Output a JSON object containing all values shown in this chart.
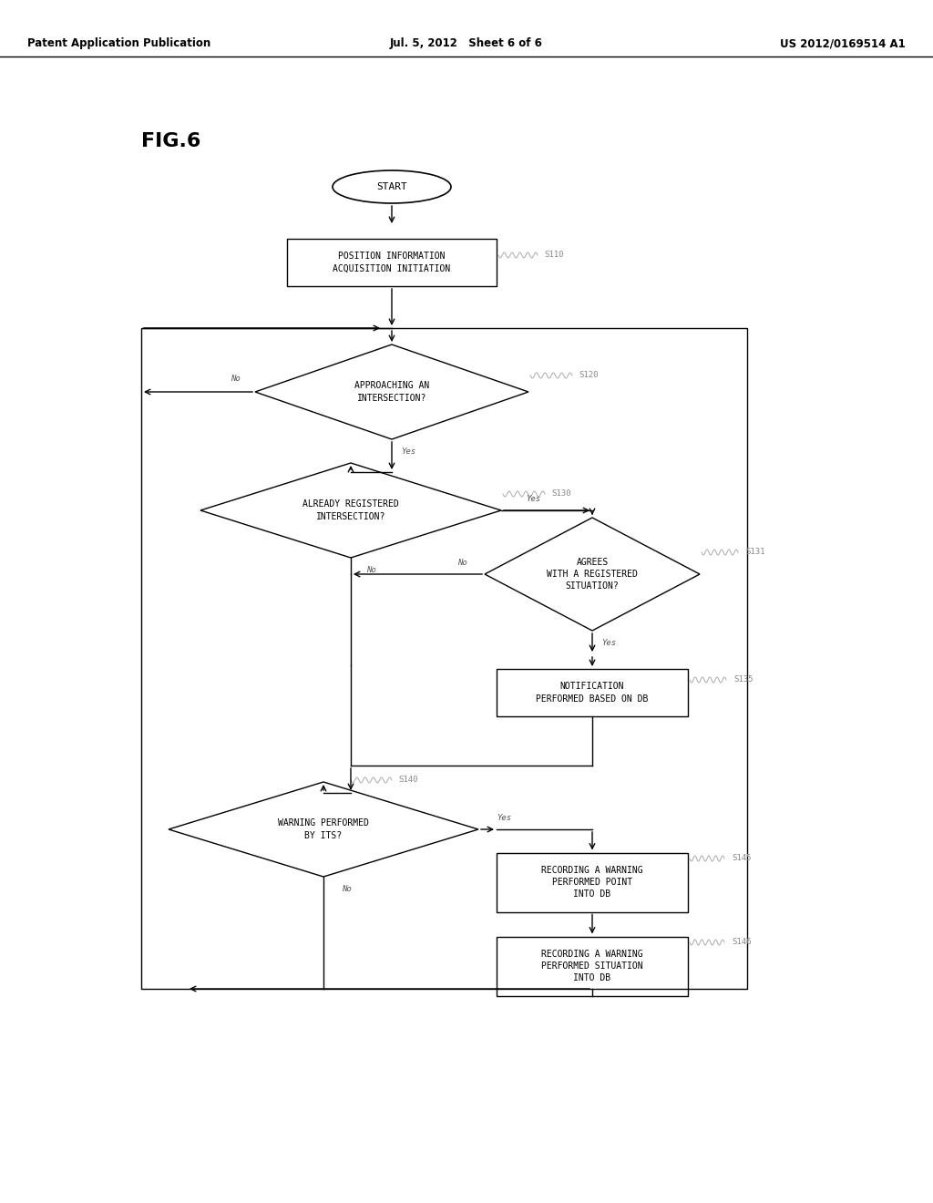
{
  "bg_color": "#ffffff",
  "header_left": "Patent Application Publication",
  "header_mid": "Jul. 5, 2012   Sheet 6 of 6",
  "header_right": "US 2012/0169514 A1",
  "fig_label": "FIG.6",
  "font_size_node": 7.0,
  "font_size_label": 6.5,
  "font_size_header": 8.5,
  "font_size_fig": 16
}
